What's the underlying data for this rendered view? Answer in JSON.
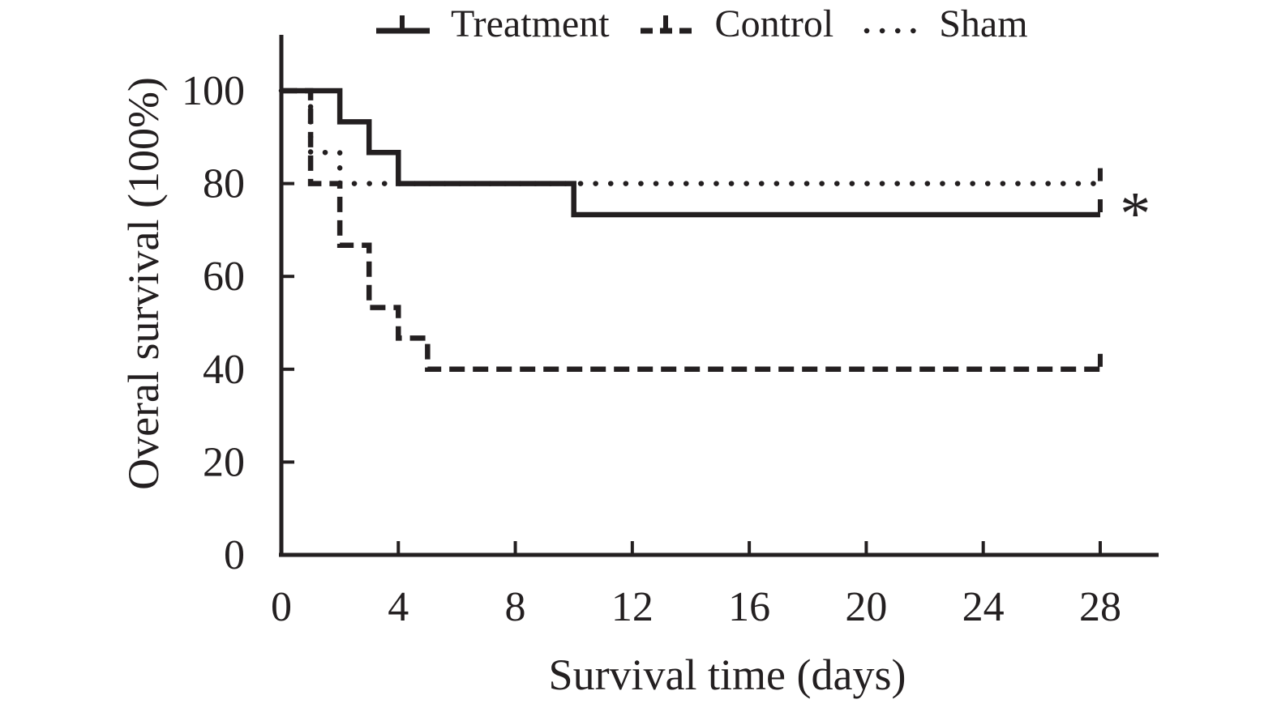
{
  "figure": {
    "background": "#ffffff",
    "ink_color": "#231f20"
  },
  "chart_data": {
    "type": "line",
    "variant": "kaplan_meier_step",
    "xlabel": "Survival time (days)",
    "ylabel": "Overal survival (100%)",
    "xlim": [
      0,
      28
    ],
    "ylim": [
      0,
      100
    ],
    "x_ticks": [
      "0",
      "4",
      "8",
      "12",
      "16",
      "20",
      "24",
      "28"
    ],
    "y_ticks": [
      "0",
      "20",
      "40",
      "60",
      "80",
      "100"
    ],
    "grid": false,
    "legend_position": "top-center",
    "legend": [
      "Treatment",
      "Control",
      "Sham"
    ],
    "series": [
      {
        "name": "Treatment",
        "line_style": "solid",
        "end_censor_tick": true,
        "steps": [
          [
            0,
            100
          ],
          [
            2,
            100
          ],
          [
            2,
            93.3
          ],
          [
            3,
            93.3
          ],
          [
            3,
            86.7
          ],
          [
            4,
            86.7
          ],
          [
            4,
            80
          ],
          [
            10,
            80
          ],
          [
            10,
            73.3
          ],
          [
            28,
            73.3
          ]
        ]
      },
      {
        "name": "Control",
        "line_style": "dashed",
        "end_censor_tick": true,
        "steps": [
          [
            0,
            100
          ],
          [
            1,
            100
          ],
          [
            1,
            80
          ],
          [
            2,
            80
          ],
          [
            2,
            66.7
          ],
          [
            3,
            66.7
          ],
          [
            3,
            53.3
          ],
          [
            4,
            53.3
          ],
          [
            4,
            46.7
          ],
          [
            5,
            46.7
          ],
          [
            5,
            40
          ],
          [
            28,
            40
          ]
        ]
      },
      {
        "name": "Sham",
        "line_style": "dotted",
        "end_censor_tick": true,
        "steps": [
          [
            0,
            100
          ],
          [
            1,
            100
          ],
          [
            1,
            86.7
          ],
          [
            2,
            86.7
          ],
          [
            2,
            80
          ],
          [
            28,
            80
          ]
        ]
      }
    ],
    "annotations": [
      {
        "text": "*",
        "x": 29.2,
        "y": 73.3
      }
    ]
  }
}
